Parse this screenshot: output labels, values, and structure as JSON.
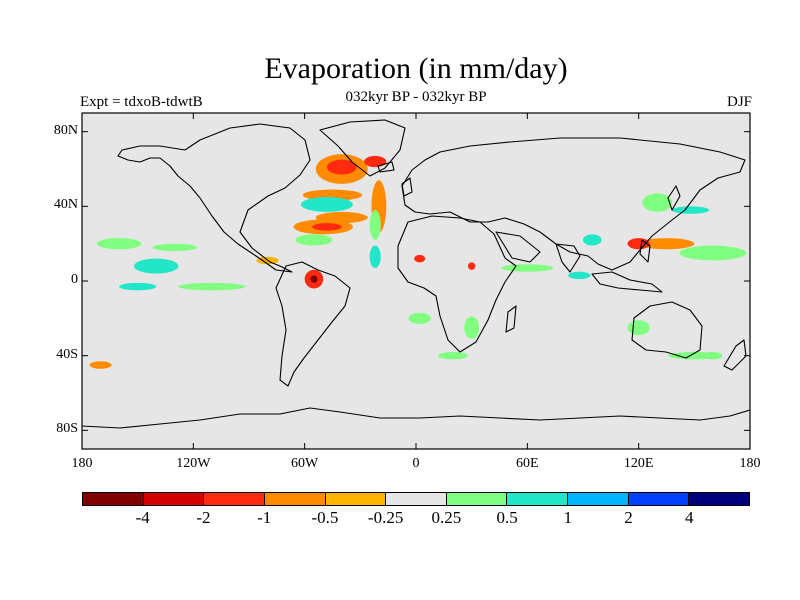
{
  "figure": {
    "title": "Evaporation (in mm/day)",
    "subtitle": "032kyr BP - 032kyr BP",
    "left_label": "Expt = tdxoB-tdwtB",
    "right_label": "DJF"
  },
  "map": {
    "projection": "equirectangular",
    "lon_range": [
      -180,
      180
    ],
    "lat_range": [
      -90,
      90
    ],
    "lat_ticks": [
      {
        "value": 80,
        "label": "80N"
      },
      {
        "value": 40,
        "label": "40N"
      },
      {
        "value": 0,
        "label": "0"
      },
      {
        "value": -40,
        "label": "40S"
      },
      {
        "value": -80,
        "label": "80S"
      }
    ],
    "lon_ticks": [
      {
        "value": -180,
        "label": "180"
      },
      {
        "value": -120,
        "label": "120W"
      },
      {
        "value": -60,
        "label": "60W"
      },
      {
        "value": 0,
        "label": "0"
      },
      {
        "value": 60,
        "label": "60E"
      },
      {
        "value": 120,
        "label": "120E"
      },
      {
        "value": 180,
        "label": "180"
      }
    ],
    "background_color": "#e6e6e6",
    "anomaly_patches": [
      {
        "lon": -40,
        "lat": 60,
        "rx": 14,
        "ry": 8,
        "color": "#ff8c00"
      },
      {
        "lon": -40,
        "lat": 61,
        "rx": 8,
        "ry": 4,
        "color": "#ff2a10"
      },
      {
        "lon": -22,
        "lat": 64,
        "rx": 6,
        "ry": 3,
        "color": "#ff2a10"
      },
      {
        "lon": -45,
        "lat": 46,
        "rx": 16,
        "ry": 3,
        "color": "#ff8c00"
      },
      {
        "lon": -48,
        "lat": 41,
        "rx": 14,
        "ry": 4,
        "color": "#22e6c8"
      },
      {
        "lon": -40,
        "lat": 34,
        "rx": 14,
        "ry": 3,
        "color": "#ff8c00"
      },
      {
        "lon": -50,
        "lat": 29,
        "rx": 16,
        "ry": 4,
        "color": "#ff8c00"
      },
      {
        "lon": -48,
        "lat": 29,
        "rx": 8,
        "ry": 2,
        "color": "#ff2a10"
      },
      {
        "lon": -55,
        "lat": 22,
        "rx": 10,
        "ry": 3,
        "color": "#80ff80"
      },
      {
        "lon": -20,
        "lat": 40,
        "rx": 4,
        "ry": 14,
        "color": "#ff8c00"
      },
      {
        "lon": -22,
        "lat": 30,
        "rx": 3,
        "ry": 8,
        "color": "#80ff80"
      },
      {
        "lon": -22,
        "lat": 13,
        "rx": 3,
        "ry": 6,
        "color": "#22e6c8"
      },
      {
        "lon": -55,
        "lat": 1,
        "rx": 5,
        "ry": 5,
        "color": "#ff2a10"
      },
      {
        "lon": -55,
        "lat": 1,
        "rx": 2,
        "ry": 2,
        "color": "#800000"
      },
      {
        "lon": -80,
        "lat": 11,
        "rx": 6,
        "ry": 2,
        "color": "#ffb400"
      },
      {
        "lon": -140,
        "lat": 8,
        "rx": 12,
        "ry": 4,
        "color": "#22e6c8"
      },
      {
        "lon": -160,
        "lat": 20,
        "rx": 12,
        "ry": 3,
        "color": "#80ff80"
      },
      {
        "lon": -130,
        "lat": 18,
        "rx": 12,
        "ry": 2,
        "color": "#80ff80"
      },
      {
        "lon": -110,
        "lat": -3,
        "rx": 18,
        "ry": 2,
        "color": "#80ff80"
      },
      {
        "lon": -150,
        "lat": -3,
        "rx": 10,
        "ry": 2,
        "color": "#22e6c8"
      },
      {
        "lon": -170,
        "lat": -45,
        "rx": 6,
        "ry": 2,
        "color": "#ff8c00"
      },
      {
        "lon": 95,
        "lat": 22,
        "rx": 5,
        "ry": 3,
        "color": "#22e6c8"
      },
      {
        "lon": 135,
        "lat": 20,
        "rx": 15,
        "ry": 3,
        "color": "#ff8c00"
      },
      {
        "lon": 120,
        "lat": 20,
        "rx": 6,
        "ry": 3,
        "color": "#ff2a10"
      },
      {
        "lon": 160,
        "lat": 15,
        "rx": 18,
        "ry": 4,
        "color": "#80ff80"
      },
      {
        "lon": 130,
        "lat": 42,
        "rx": 8,
        "ry": 5,
        "color": "#80ff80"
      },
      {
        "lon": 148,
        "lat": 38,
        "rx": 10,
        "ry": 2,
        "color": "#22e6c8"
      },
      {
        "lon": 60,
        "lat": 7,
        "rx": 14,
        "ry": 2,
        "color": "#80ff80"
      },
      {
        "lon": 88,
        "lat": 3,
        "rx": 6,
        "ry": 2,
        "color": "#22e6c8"
      },
      {
        "lon": 30,
        "lat": -25,
        "rx": 4,
        "ry": 6,
        "color": "#80ff80"
      },
      {
        "lon": 2,
        "lat": -20,
        "rx": 6,
        "ry": 3,
        "color": "#80ff80"
      },
      {
        "lon": 30,
        "lat": 8,
        "rx": 2,
        "ry": 2,
        "color": "#ff2a10"
      },
      {
        "lon": 2,
        "lat": 12,
        "rx": 3,
        "ry": 2,
        "color": "#ff2a10"
      },
      {
        "lon": 20,
        "lat": -40,
        "rx": 8,
        "ry": 2,
        "color": "#80ff80"
      },
      {
        "lon": 160,
        "lat": -40,
        "rx": 5,
        "ry": 2,
        "color": "#80ff80"
      },
      {
        "lon": 120,
        "lat": -25,
        "rx": 6,
        "ry": 4,
        "color": "#80ff80"
      },
      {
        "lon": 150,
        "lat": -40,
        "rx": 14,
        "ry": 2,
        "color": "#80ff80"
      }
    ]
  },
  "colorbar": {
    "colors": [
      "#800000",
      "#d40000",
      "#ff2a10",
      "#ff8c00",
      "#ffb400",
      "#e6e6e6",
      "#80ff80",
      "#22e6c8",
      "#00b4ff",
      "#0040ff",
      "#00007a"
    ],
    "labels": [
      "-4",
      "-2",
      "-1",
      "-0.5",
      "-0.25",
      "0.25",
      "0.5",
      "1",
      "2",
      "4"
    ]
  }
}
